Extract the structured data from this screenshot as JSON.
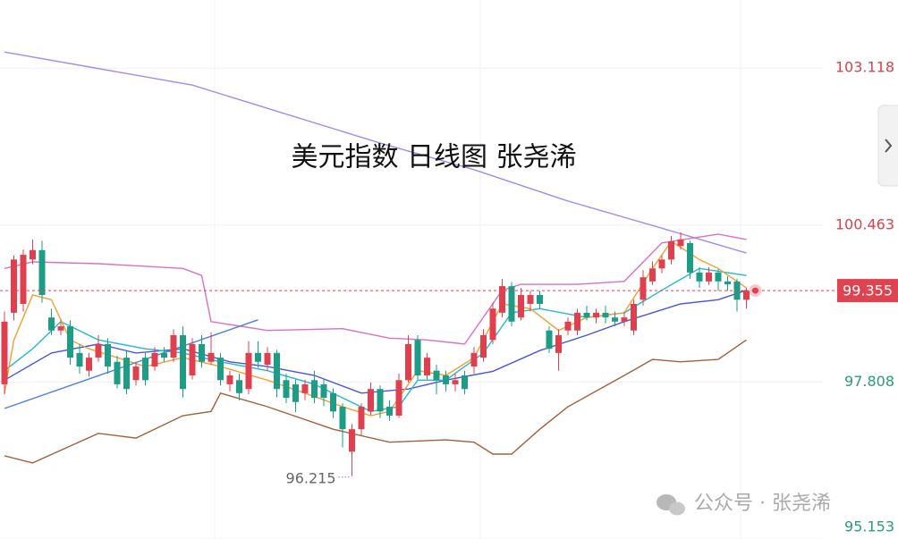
{
  "chart_data": {
    "type": "candlestick",
    "title": "美元指数 日线图 张尧浠",
    "watermark": "公众号 · 张尧浠",
    "up_color": "#e0404e",
    "down_color": "#1e9c86",
    "ylim": [
      95.153,
      104.27
    ],
    "yticks": [
      103.118,
      100.463,
      97.808,
      95.153
    ],
    "open": [
      97.77,
      98.98,
      99.13,
      99.88,
      100.04,
      98.9,
      98.68,
      98.75,
      98.3,
      98.0,
      98.22,
      98.45,
      98.15,
      98.22,
      97.84,
      98.22,
      98.07,
      98.3,
      98.22,
      98.6,
      97.92,
      98.45,
      98.15,
      98.22,
      97.77,
      97.84,
      97.69,
      98.3,
      98.1,
      98.3,
      97.84,
      97.77,
      97.62,
      97.84,
      97.77,
      97.62,
      97.39,
      96.63,
      97.01,
      97.31,
      97.69,
      97.39,
      97.24,
      97.84,
      98.52,
      97.92,
      98.0,
      97.92,
      97.77,
      97.92,
      98.07,
      98.22,
      98.52,
      98.98,
      99.43,
      98.9,
      99.13,
      99.28,
      98.68,
      98.3,
      98.68,
      98.68,
      98.98,
      98.9,
      98.98,
      98.9,
      98.83,
      98.68,
      99.2,
      99.51,
      99.73,
      99.88,
      100.11,
      100.16,
      99.66,
      99.51,
      99.66,
      99.51,
      99.51,
      99.2
    ],
    "high": [
      99.0,
      99.95,
      100.05,
      100.22,
      100.2,
      99.05,
      98.85,
      98.85,
      98.45,
      98.3,
      98.6,
      98.55,
      98.25,
      98.35,
      98.15,
      98.3,
      98.4,
      98.4,
      98.7,
      98.75,
      98.55,
      98.6,
      98.65,
      98.3,
      98.0,
      97.95,
      98.5,
      98.5,
      98.4,
      98.35,
      97.95,
      97.85,
      97.85,
      98.0,
      97.85,
      97.7,
      97.45,
      97.1,
      97.45,
      97.8,
      97.75,
      97.5,
      97.95,
      98.6,
      98.6,
      98.3,
      98.1,
      98.0,
      97.95,
      98.0,
      98.4,
      98.7,
      99.15,
      99.55,
      99.5,
      99.4,
      99.35,
      99.35,
      98.75,
      98.7,
      98.9,
      99.05,
      99.1,
      99.05,
      99.1,
      99.0,
      99.0,
      99.2,
      99.7,
      99.85,
      99.95,
      100.28,
      100.34,
      100.2,
      99.75,
      99.75,
      99.72,
      99.6,
      99.55,
      99.4
    ],
    "low": [
      97.6,
      98.85,
      99.0,
      99.8,
      99.15,
      98.6,
      98.6,
      98.1,
      97.95,
      97.9,
      98.15,
      97.95,
      97.7,
      97.6,
      97.75,
      97.75,
      98.0,
      98.15,
      98.15,
      97.55,
      97.85,
      98.05,
      98.1,
      97.75,
      97.65,
      97.5,
      97.6,
      98.05,
      98.0,
      97.55,
      97.45,
      97.3,
      97.5,
      97.45,
      97.4,
      97.2,
      96.7,
      96.215,
      96.9,
      97.25,
      97.2,
      97.15,
      97.2,
      97.8,
      97.85,
      97.85,
      97.6,
      97.65,
      97.65,
      97.6,
      97.95,
      98.15,
      98.45,
      98.9,
      98.75,
      98.85,
      99.0,
      99.05,
      98.3,
      98.0,
      98.6,
      98.6,
      98.85,
      98.8,
      98.8,
      98.75,
      98.75,
      98.6,
      99.1,
      99.45,
      99.65,
      99.8,
      100.05,
      99.55,
      99.4,
      99.45,
      99.35,
      99.35,
      99.0,
      99.05
    ],
    "close": [
      98.83,
      99.88,
      99.96,
      100.04,
      99.28,
      98.68,
      98.75,
      98.22,
      98.07,
      98.22,
      98.45,
      98.07,
      97.77,
      97.69,
      98.07,
      97.84,
      98.3,
      98.22,
      98.6,
      97.69,
      98.45,
      98.15,
      98.3,
      97.84,
      97.92,
      97.62,
      98.3,
      98.15,
      98.3,
      97.69,
      97.54,
      97.47,
      97.77,
      97.54,
      97.54,
      97.31,
      97.01,
      97.01,
      97.39,
      97.69,
      97.31,
      97.24,
      97.84,
      98.45,
      97.92,
      98.22,
      97.84,
      97.77,
      97.84,
      97.69,
      98.3,
      98.6,
      99.05,
      99.43,
      98.83,
      99.28,
      99.28,
      99.13,
      98.37,
      98.6,
      98.83,
      98.98,
      98.9,
      98.98,
      98.9,
      98.83,
      98.9,
      99.13,
      99.58,
      99.73,
      99.88,
      100.19,
      100.22,
      99.66,
      99.51,
      99.66,
      99.51,
      99.46,
      99.2,
      99.355
    ],
    "series": [
      {
        "color": "#a58ae6",
        "x": [
          0,
          20,
          40,
          50,
          60,
          70,
          79
        ],
        "values": [
          103.39,
          102.83,
          101.85,
          101.4,
          100.87,
          100.41,
          99.99
        ]
      },
      {
        "color": "#d672c6",
        "x": [
          0,
          3,
          10,
          19,
          21,
          22,
          28,
          36,
          41,
          45,
          49,
          53,
          55,
          61,
          66,
          70,
          76,
          79
        ],
        "values": [
          99.73,
          99.84,
          99.81,
          99.73,
          99.61,
          98.83,
          98.68,
          98.71,
          98.55,
          98.52,
          98.45,
          99.36,
          99.46,
          99.46,
          99.51,
          100.16,
          100.31,
          100.22
        ]
      },
      {
        "color": "#a0623c",
        "x": [
          0,
          3,
          10,
          14,
          19,
          22,
          23,
          28,
          35,
          41,
          47,
          50,
          52,
          54,
          57,
          60,
          66,
          69,
          72,
          76,
          79
        ],
        "values": [
          96.56,
          96.44,
          96.94,
          96.86,
          97.24,
          97.31,
          97.62,
          97.39,
          97.01,
          96.79,
          96.83,
          96.79,
          96.59,
          96.59,
          97.01,
          97.39,
          97.92,
          98.19,
          98.15,
          98.19,
          98.52
        ]
      },
      {
        "color": "#4a55d8",
        "x": [
          0,
          5,
          10,
          14,
          19,
          24,
          28,
          33,
          38,
          43,
          47,
          52,
          57,
          62,
          66,
          72,
          76,
          79
        ],
        "values": [
          97.84,
          98.3,
          98.45,
          98.3,
          98.37,
          98.15,
          98.07,
          97.92,
          97.62,
          97.69,
          97.84,
          97.99,
          98.34,
          98.6,
          98.83,
          99.13,
          99.2,
          99.36
        ]
      },
      {
        "color": "#22b8d0",
        "x": [
          0,
          3,
          6,
          10,
          15,
          19,
          23,
          28,
          33,
          36,
          39,
          42,
          44,
          47,
          51,
          54,
          57,
          62,
          66,
          70,
          74,
          79
        ],
        "values": [
          98.0,
          98.37,
          98.83,
          98.52,
          98.37,
          98.3,
          98.15,
          98.0,
          97.77,
          97.54,
          97.31,
          97.39,
          97.84,
          97.84,
          98.3,
          98.98,
          99.05,
          98.9,
          98.98,
          99.36,
          99.73,
          99.61
        ]
      },
      {
        "color": "#f0a030",
        "x": [
          0,
          1,
          3,
          5,
          7,
          9,
          12,
          15,
          19,
          23,
          28,
          32,
          36,
          39,
          41,
          44,
          47,
          50,
          53,
          56,
          59,
          62,
          66,
          69,
          71,
          74,
          76,
          79
        ],
        "values": [
          97.62,
          98.52,
          99.28,
          99.2,
          98.52,
          98.37,
          98.22,
          98.07,
          98.22,
          98.07,
          97.84,
          97.62,
          97.39,
          97.24,
          97.31,
          98.0,
          97.92,
          98.22,
          99.13,
          99.05,
          98.68,
          98.9,
          98.98,
          99.73,
          100.19,
          99.88,
          99.73,
          99.4
        ]
      },
      {
        "color": "#4a7ee0",
        "x": [
          0,
          27
        ],
        "values": [
          97.36,
          98.86
        ]
      }
    ]
  }
}
